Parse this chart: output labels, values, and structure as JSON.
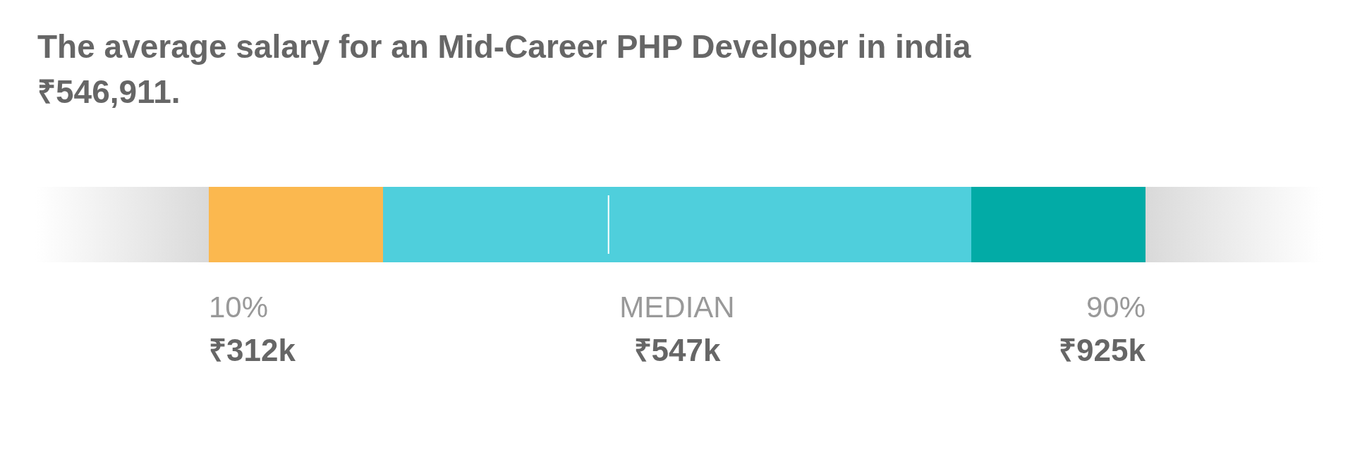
{
  "chart_data": {
    "type": "other",
    "title": "The average salary for an Mid-Career PHP Developer in india ₹546,911.",
    "categories": [
      "10%",
      "MEDIAN",
      "90%"
    ],
    "values": [
      312,
      547,
      925
    ],
    "value_labels": [
      "₹312k",
      "₹547k",
      "₹925k"
    ],
    "colors": [
      "#fbb84f",
      "#4fcfdc",
      "#02aba6"
    ]
  }
}
